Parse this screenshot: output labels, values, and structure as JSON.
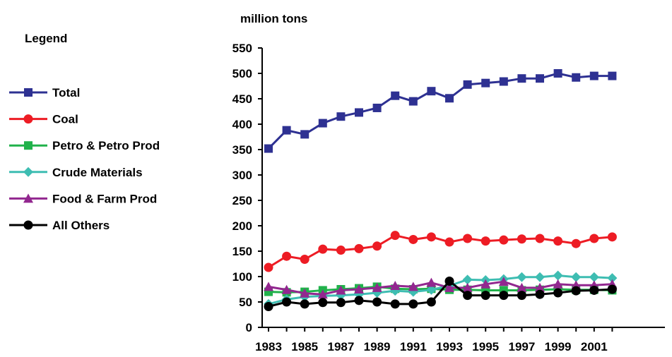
{
  "chart_data": {
    "type": "line",
    "ylabel": "million tons",
    "legend_title": "Legend",
    "legend_position": "left",
    "grid": false,
    "ylim": [
      0,
      550
    ],
    "yticks": [
      0,
      50,
      100,
      150,
      200,
      250,
      300,
      350,
      400,
      450,
      500,
      550
    ],
    "xlim": [
      1983,
      2002
    ],
    "xtick_labels": [
      "1983",
      "1985",
      "1987",
      "1989",
      "1991",
      "1993",
      "1995",
      "1997",
      "1999",
      "2001"
    ],
    "x": [
      1983,
      1984,
      1985,
      1986,
      1987,
      1988,
      1989,
      1990,
      1991,
      1992,
      1993,
      1994,
      1995,
      1996,
      1997,
      1998,
      1999,
      2000,
      2001,
      2002
    ],
    "series": [
      {
        "name": "Total",
        "color": "#2e3192",
        "marker": "square",
        "values": [
          352,
          388,
          380,
          402,
          415,
          423,
          432,
          456,
          445,
          465,
          451,
          478,
          481,
          484,
          490,
          490,
          500,
          492,
          495,
          495
        ]
      },
      {
        "name": "Coal",
        "color": "#ed1c24",
        "marker": "circle",
        "values": [
          118,
          140,
          134,
          154,
          152,
          155,
          160,
          181,
          173,
          178,
          168,
          175,
          170,
          172,
          174,
          175,
          170,
          165,
          175,
          178
        ]
      },
      {
        "name": "Petro & Petro Prod",
        "color": "#21b24b",
        "marker": "square",
        "values": [
          70,
          69,
          70,
          73,
          75,
          77,
          80,
          76,
          75,
          76,
          74,
          74,
          73,
          73,
          73,
          74,
          75,
          74,
          74,
          73
        ]
      },
      {
        "name": "Crude Materials",
        "color": "#3ebdb2",
        "marker": "diamond",
        "values": [
          46,
          55,
          60,
          62,
          63,
          65,
          68,
          72,
          70,
          74,
          82,
          94,
          93,
          95,
          99,
          99,
          102,
          99,
          99,
          97
        ]
      },
      {
        "name": "Food & Farm Prod",
        "color": "#92278f",
        "marker": "triangle",
        "values": [
          80,
          74,
          67,
          65,
          73,
          75,
          78,
          82,
          80,
          88,
          78,
          78,
          85,
          90,
          78,
          78,
          85,
          83,
          83,
          85
        ]
      },
      {
        "name": "All Others",
        "color": "#000000",
        "marker": "circle",
        "values": [
          41,
          50,
          46,
          49,
          49,
          53,
          50,
          46,
          46,
          50,
          91,
          63,
          63,
          63,
          63,
          65,
          68,
          72,
          73,
          75
        ]
      }
    ]
  }
}
